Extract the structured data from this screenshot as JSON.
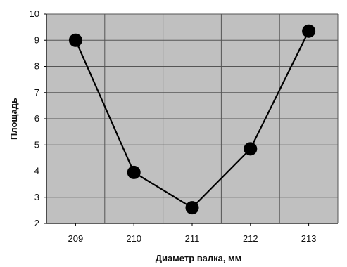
{
  "chart_data": {
    "type": "line",
    "title": "",
    "xlabel": "Диаметр валка, мм",
    "ylabel": "Площадь",
    "categories": [
      "209",
      "210",
      "211",
      "212",
      "213"
    ],
    "series": [
      {
        "values": [
          9.0,
          3.95,
          2.6,
          4.85,
          9.35
        ]
      }
    ],
    "ylim": [
      2,
      10
    ],
    "yticks": [
      "2",
      "3",
      "4",
      "5",
      "6",
      "7",
      "8",
      "9",
      "10"
    ],
    "grid": true,
    "legend": "none",
    "colors": {
      "plot_background": "#c0c0c0",
      "grid": "#555555",
      "line": "#000000",
      "marker": "#000000",
      "axis": "#000000"
    }
  }
}
